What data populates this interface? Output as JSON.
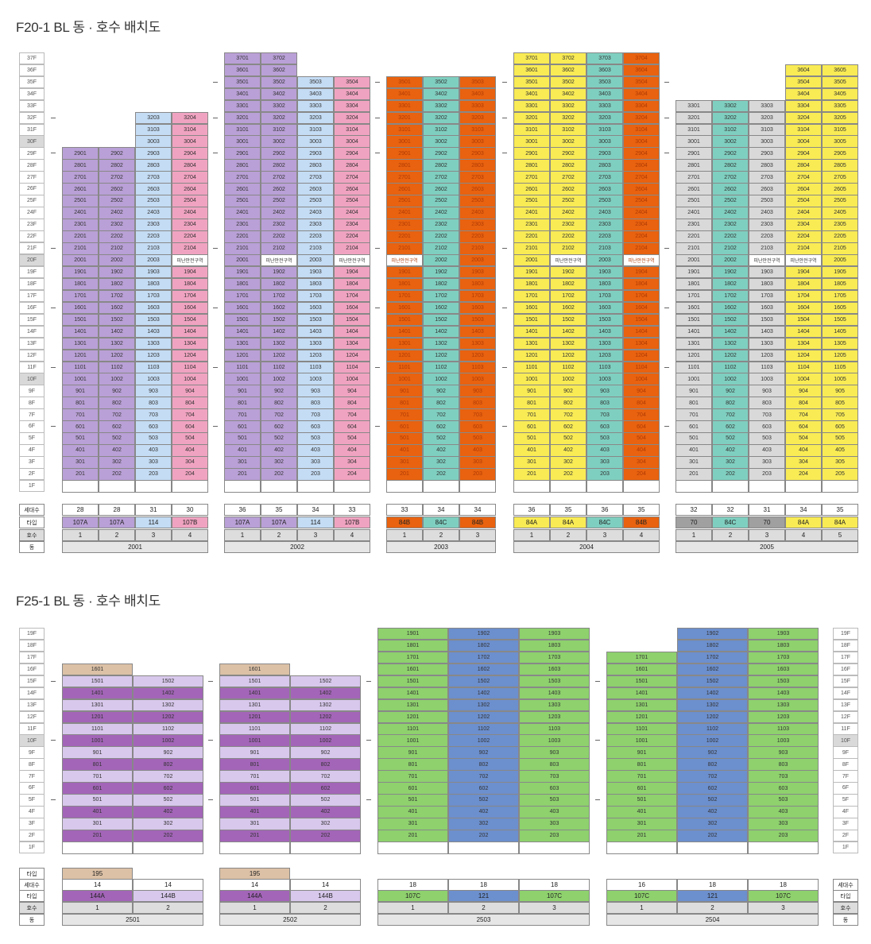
{
  "section1": {
    "title": "F20-1 BL 동 · 호수 배치도"
  },
  "section2": {
    "title": "F25-1 BL 동 · 호수 배치도"
  },
  "row_labels": {
    "units": "세대수",
    "type": "타입",
    "line": "호수",
    "building": "동"
  },
  "colors": {
    "purple": "#b9a0d6",
    "lightblue": "#c4dcf4",
    "pink": "#f0a3c0",
    "orange": "#e8620f",
    "teal": "#7fcfc0",
    "yellow": "#f9eb54",
    "gray": "#d9d9d9",
    "darkgray": "#a0a0a0",
    "lavender": "#d8c8ec",
    "violet": "#a365b8",
    "tan": "#dcc1a6",
    "green": "#8ed16d",
    "blue": "#6c8fcd",
    "refuge": "#ffffff"
  },
  "refuge_label": "피난안전구역",
  "buildings_s1": [
    {
      "name": "2001",
      "lines": [
        {
          "top": 29,
          "color": "purple",
          "units": "28",
          "type": "107A",
          "line": "1"
        },
        {
          "top": 29,
          "color": "purple",
          "units": "28",
          "type": "107A",
          "line": "2"
        },
        {
          "top": 32,
          "color": "lightblue",
          "units": "31",
          "type": "114",
          "line": "3"
        },
        {
          "top": 32,
          "color": "pink",
          "units": "30",
          "type": "107B",
          "line": "4",
          "refuge": [
            20
          ]
        }
      ]
    },
    {
      "name": "2002",
      "lines": [
        {
          "top": 37,
          "color": "purple",
          "units": "36",
          "type": "107A",
          "line": "1"
        },
        {
          "top": 37,
          "color": "purple",
          "units": "35",
          "type": "107A",
          "line": "2",
          "refuge": [
            20
          ]
        },
        {
          "top": 35,
          "color": "lightblue",
          "units": "34",
          "type": "114",
          "line": "3"
        },
        {
          "top": 35,
          "color": "pink",
          "units": "33",
          "type": "107B",
          "line": "4",
          "refuge": [
            20
          ]
        }
      ]
    },
    {
      "name": "2003",
      "lines": [
        {
          "top": 35,
          "color": "orange",
          "units": "33",
          "type": "84B",
          "line": "1",
          "refuge": [
            20
          ]
        },
        {
          "top": 35,
          "color": "teal",
          "units": "34",
          "type": "84C",
          "line": "2"
        },
        {
          "top": 35,
          "color": "orange",
          "units": "34",
          "type": "84B",
          "line": "3"
        }
      ]
    },
    {
      "name": "2004",
      "lines": [
        {
          "top": 37,
          "color": "yellow",
          "units": "36",
          "type": "84A",
          "line": "1"
        },
        {
          "top": 37,
          "color": "yellow",
          "units": "35",
          "type": "84A",
          "line": "2",
          "refuge": [
            20
          ]
        },
        {
          "top": 37,
          "color": "teal",
          "units": "36",
          "type": "84C",
          "line": "3"
        },
        {
          "top": 37,
          "color": "orange",
          "units": "35",
          "type": "84B",
          "line": "4",
          "refuge": [
            20
          ]
        }
      ]
    },
    {
      "name": "2005",
      "lines": [
        {
          "top": 33,
          "color": "gray",
          "units": "32",
          "type": "70",
          "typeColor": "darkgray",
          "line": "1"
        },
        {
          "top": 33,
          "color": "teal",
          "units": "32",
          "type": "84C",
          "line": "2"
        },
        {
          "top": 33,
          "color": "gray",
          "units": "31",
          "type": "70",
          "typeColor": "darkgray",
          "line": "3",
          "refuge": [
            20
          ]
        },
        {
          "top": 36,
          "color": "yellow",
          "units": "34",
          "type": "84A",
          "line": "4",
          "refuge": [
            20
          ]
        },
        {
          "top": 36,
          "color": "yellow",
          "units": "35",
          "type": "84A",
          "line": "5"
        }
      ]
    }
  ],
  "buildings_s2": [
    {
      "name": "2501",
      "lines": [
        {
          "top": 16,
          "color": "lav",
          "units": "14",
          "type": "144A",
          "type2": "195",
          "line": "1"
        },
        {
          "top": 15,
          "color": "lav",
          "units": "14",
          "type": "144B",
          "line": "2"
        }
      ]
    },
    {
      "name": "2502",
      "lines": [
        {
          "top": 16,
          "color": "lav",
          "units": "14",
          "type": "144A",
          "type2": "195",
          "line": "1"
        },
        {
          "top": 15,
          "color": "lav",
          "units": "14",
          "type": "144B",
          "line": "2"
        }
      ]
    },
    {
      "name": "2503",
      "lines": [
        {
          "top": 19,
          "color": "green",
          "units": "18",
          "type": "107C",
          "line": "1"
        },
        {
          "top": 19,
          "color": "blue",
          "units": "18",
          "type": "121",
          "line": "2"
        },
        {
          "top": 19,
          "color": "green",
          "units": "18",
          "type": "107C",
          "line": "3"
        }
      ]
    },
    {
      "name": "2504",
      "lines": [
        {
          "top": 17,
          "color": "green",
          "units": "16",
          "type": "107C",
          "line": "1"
        },
        {
          "top": 19,
          "color": "blue",
          "units": "18",
          "type": "121",
          "line": "2"
        },
        {
          "top": 19,
          "color": "green",
          "units": "18",
          "type": "107C",
          "line": "3"
        }
      ]
    }
  ],
  "label_tip": "타입"
}
